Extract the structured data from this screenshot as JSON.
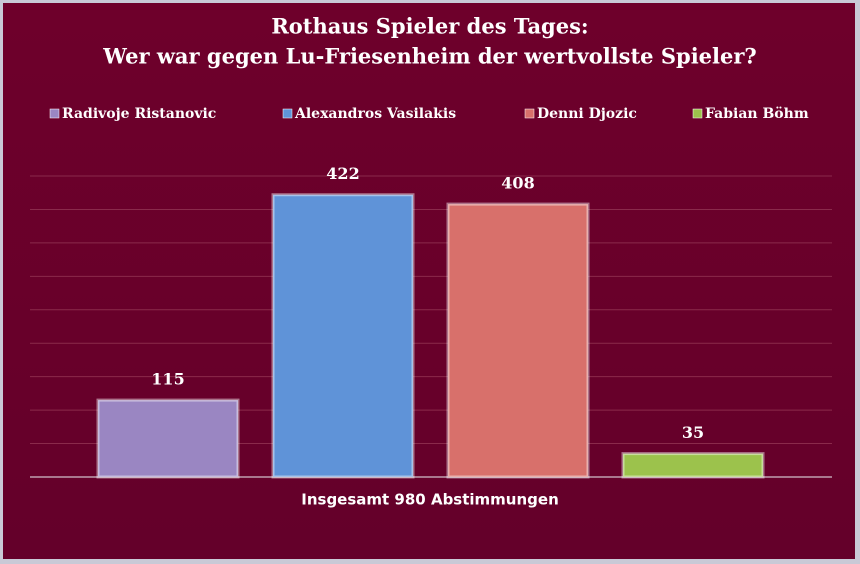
{
  "chart_data": {
    "type": "bar",
    "title": [
      "Rothaus Spieler des Tages:",
      "Wer war gegen Lu-Friesenheim der wertvollste Spieler?"
    ],
    "x_label": "Insgesamt 980 Abstimmungen",
    "categories": [
      null
    ],
    "series": [
      {
        "name": "Radivoje Ristanovic",
        "color": "#9a86c2",
        "values": [
          115
        ]
      },
      {
        "name": "Alexandros Vasilakis",
        "color": "#5f93d8",
        "values": [
          422
        ]
      },
      {
        "name": "Denni Djozic",
        "color": "#d8706b",
        "values": [
          408
        ]
      },
      {
        "name": "Fabian Böhm",
        "color": "#9cc24c",
        "values": [
          35
        ]
      }
    ],
    "ylim": [
      0,
      450
    ],
    "yticks": [
      0,
      50,
      100,
      150,
      200,
      250,
      300,
      350,
      400,
      450
    ],
    "grid": true,
    "legend": "top"
  }
}
